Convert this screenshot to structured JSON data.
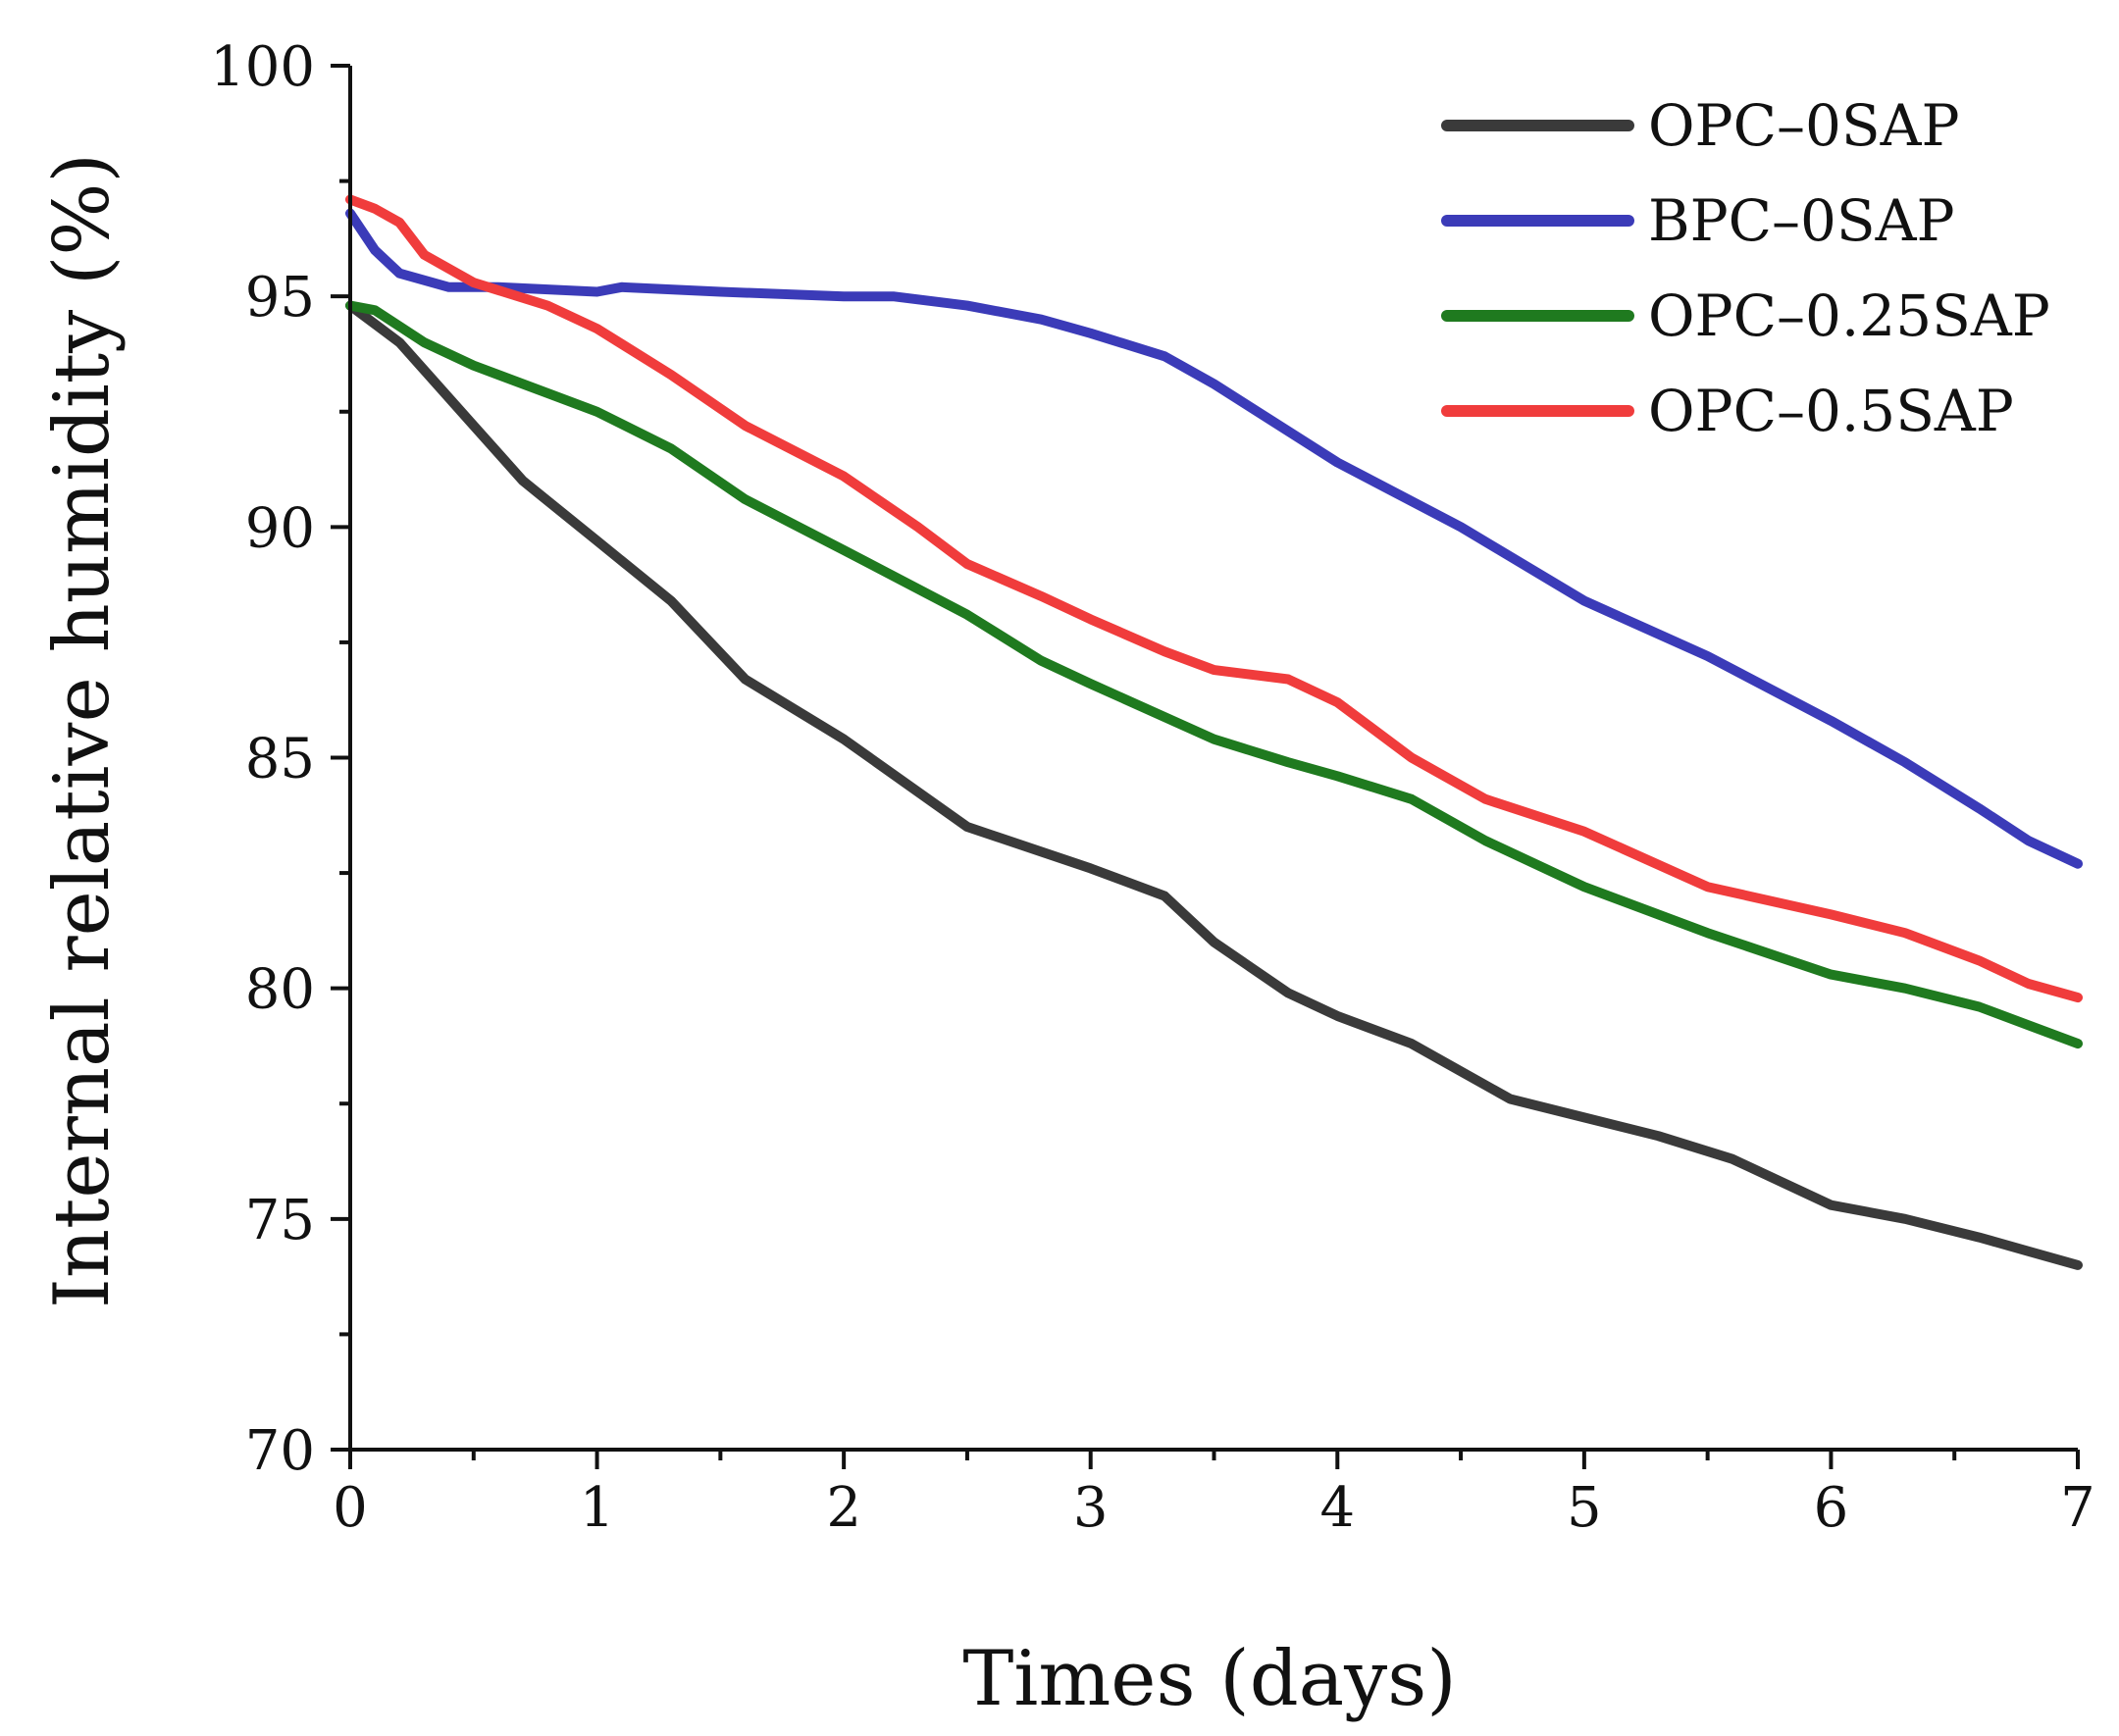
{
  "chart_data": {
    "type": "line",
    "title": "",
    "xlabel": "Times (days)",
    "ylabel": "Internal relative humidity (%)",
    "xlim": [
      0,
      7
    ],
    "ylim": [
      70,
      100
    ],
    "x_ticks": [
      0,
      1,
      2,
      3,
      4,
      5,
      6,
      7
    ],
    "y_ticks": [
      70,
      75,
      80,
      85,
      90,
      95,
      100
    ],
    "x_tick_labels": [
      "0",
      "1",
      "2",
      "3",
      "4",
      "5",
      "6",
      "7"
    ],
    "y_tick_labels": [
      "70",
      "75",
      "80",
      "85",
      "90",
      "95",
      "100"
    ],
    "legend_position": "top-right",
    "grid": false,
    "series": [
      {
        "name": "OPC–0SAP",
        "color": "#3a3a3a",
        "x": [
          0,
          0.2,
          0.5,
          0.7,
          1.0,
          1.3,
          1.6,
          2.0,
          2.5,
          3.0,
          3.3,
          3.5,
          3.8,
          4.0,
          4.3,
          4.7,
          5.0,
          5.3,
          5.6,
          6.0,
          6.3,
          6.6,
          6.8,
          7.0
        ],
        "y": [
          94.8,
          94.0,
          92.2,
          91.0,
          89.7,
          88.4,
          86.7,
          85.4,
          83.5,
          82.6,
          82.0,
          81.0,
          79.9,
          79.4,
          78.8,
          77.6,
          77.2,
          76.8,
          76.3,
          75.3,
          75.0,
          74.6,
          74.3,
          74.0
        ]
      },
      {
        "name": "BPC–0SAP",
        "color": "#3b3bb8",
        "x": [
          0,
          0.1,
          0.2,
          0.4,
          0.6,
          1.0,
          1.1,
          1.5,
          2.0,
          2.2,
          2.5,
          2.8,
          3.0,
          3.3,
          3.5,
          4.0,
          4.5,
          5.0,
          5.5,
          6.0,
          6.3,
          6.6,
          6.8,
          7.0
        ],
        "y": [
          96.8,
          96.0,
          95.5,
          95.2,
          95.2,
          95.1,
          95.2,
          95.1,
          95.0,
          95.0,
          94.8,
          94.5,
          94.2,
          93.7,
          93.1,
          91.4,
          90.0,
          88.4,
          87.2,
          85.8,
          84.9,
          83.9,
          83.2,
          82.7
        ]
      },
      {
        "name": "OPC–0.25SAP",
        "color": "#1f7a1f",
        "x": [
          0,
          0.1,
          0.3,
          0.5,
          0.8,
          1.0,
          1.3,
          1.6,
          2.0,
          2.5,
          2.8,
          3.0,
          3.5,
          3.8,
          4.0,
          4.3,
          4.6,
          5.0,
          5.5,
          6.0,
          6.3,
          6.6,
          6.8,
          7.0
        ],
        "y": [
          94.8,
          94.7,
          94.0,
          93.5,
          92.9,
          92.5,
          91.7,
          90.6,
          89.5,
          88.1,
          87.1,
          86.6,
          85.4,
          84.9,
          84.6,
          84.1,
          83.2,
          82.2,
          81.2,
          80.3,
          80.0,
          79.6,
          79.2,
          78.8
        ]
      },
      {
        "name": "OPC–0.5SAP",
        "color": "#f03c3c",
        "x": [
          0,
          0.1,
          0.2,
          0.3,
          0.5,
          0.8,
          1.0,
          1.3,
          1.6,
          2.0,
          2.3,
          2.5,
          2.8,
          3.0,
          3.3,
          3.5,
          3.8,
          4.0,
          4.3,
          4.6,
          5.0,
          5.5,
          6.0,
          6.3,
          6.6,
          6.8,
          7.0
        ],
        "y": [
          97.1,
          96.9,
          96.6,
          95.9,
          95.3,
          94.8,
          94.3,
          93.3,
          92.2,
          91.1,
          90.0,
          89.2,
          88.5,
          88.0,
          87.3,
          86.9,
          86.7,
          86.2,
          85.0,
          84.1,
          83.4,
          82.2,
          81.6,
          81.2,
          80.6,
          80.1,
          79.8
        ]
      }
    ]
  }
}
